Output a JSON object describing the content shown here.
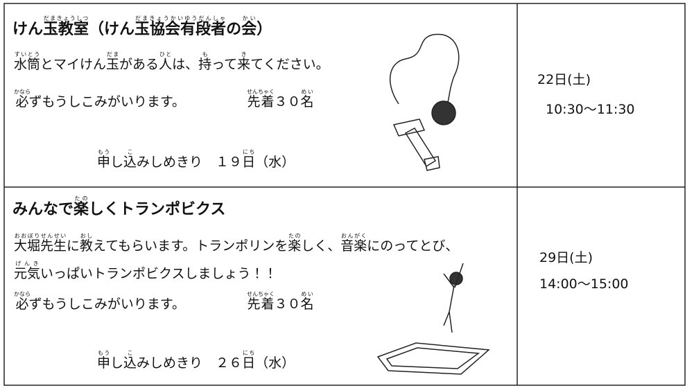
{
  "rows": [
    {
      "title": [
        "けん",
        {
          "b": "玉教室",
          "r": "だまきょうしつ"
        },
        "（けん",
        {
          "b": "玉協会有段者",
          "r": "だまきょうかいゆうだんしゃ"
        },
        "の",
        {
          "b": "会",
          "r": "かい"
        },
        "）"
      ],
      "lines": [
        [
          {
            "b": "水筒",
            "r": "すいとう"
          },
          "とマイけん",
          {
            "b": "玉",
            "r": "だま"
          },
          "がある",
          {
            "b": "人",
            "r": "ひと"
          },
          "は、",
          {
            "b": "持",
            "r": "も"
          },
          "って",
          {
            "b": "来",
            "r": "き"
          },
          "てください。"
        ]
      ],
      "required": [
        {
          "b": "必",
          "r": "かなら"
        },
        "ずもうしこみがいります。"
      ],
      "capacity": [
        {
          "b": "先着",
          "r": "せんちゃく"
        },
        "３０",
        {
          "b": "名",
          "r": "めい"
        }
      ],
      "deadline": [
        {
          "b": "申",
          "r": "もう"
        },
        "し",
        {
          "b": "込",
          "r": "こ"
        },
        "みしめきり　１９",
        {
          "b": "日",
          "r": "にち"
        },
        "（水）"
      ],
      "date": "22日(土)",
      "time": "10:30～11:30"
    },
    {
      "title": [
        "みんなで",
        {
          "b": "楽",
          "r": "たの"
        },
        "しくトランポビクス"
      ],
      "lines": [
        [
          {
            "b": "大堀先生",
            "r": "おおぼりせんせい"
          },
          "に",
          {
            "b": "教",
            "r": "おし"
          },
          "えてもらいます。トランポリンを",
          {
            "b": "楽",
            "r": "たの"
          },
          "しく、",
          {
            "b": "音楽",
            "r": "おんがく"
          },
          "にのってとび、"
        ],
        [
          {
            "b": "元気",
            "r": "げんき"
          },
          "いっぱいトランポビクスしましょう！！"
        ]
      ],
      "required": [
        {
          "b": "必",
          "r": "かなら"
        },
        "ずもうしこみがいります。"
      ],
      "capacity": [
        {
          "b": "先着",
          "r": "せんちゃく"
        },
        "３０",
        {
          "b": "名",
          "r": "めい"
        }
      ],
      "deadline": [
        {
          "b": "申",
          "r": "もう"
        },
        "し",
        {
          "b": "込",
          "r": "こ"
        },
        "みしめきり　２６",
        {
          "b": "日",
          "r": "にち"
        },
        "（水）"
      ],
      "date": "29日(土)",
      "time": "14:00～15:00"
    }
  ]
}
